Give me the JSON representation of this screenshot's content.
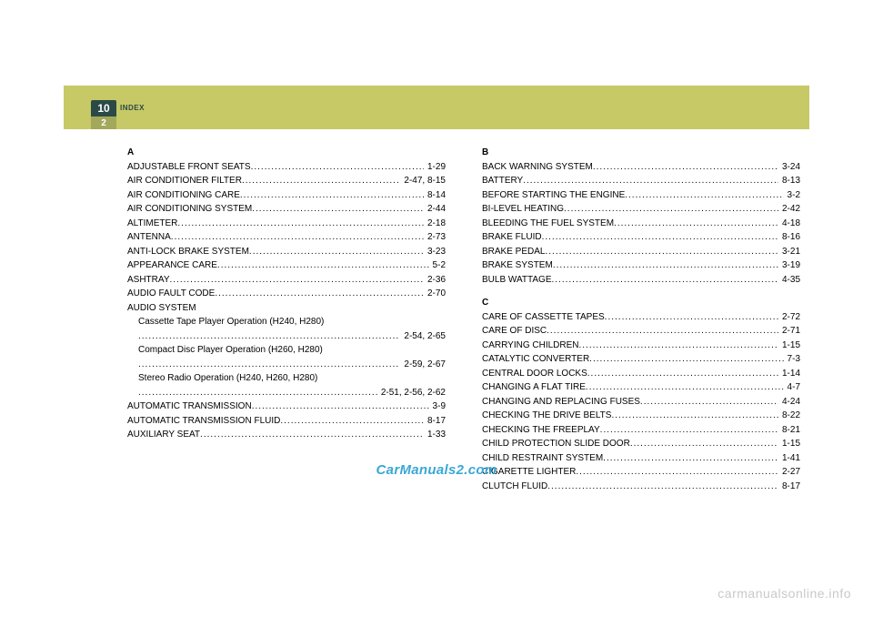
{
  "header": {
    "chapter_number": "10",
    "chapter_label": "INDEX",
    "page_number": "2"
  },
  "left_column": {
    "sections": [
      {
        "letter": "A",
        "entries": [
          {
            "label": "ADJUSTABLE FRONT SEATS",
            "page": "1-29"
          },
          {
            "label": "AIR CONDITIONER FILTER",
            "page": "2-47, 8-15"
          },
          {
            "label": "AIR CONDITIONING CARE",
            "page": "8-14"
          },
          {
            "label": "AIR CONDITIONING SYSTEM",
            "page": "2-44"
          },
          {
            "label": "ALTIMETER",
            "page": "2-18"
          },
          {
            "label": "ANTENNA",
            "page": "2-73"
          },
          {
            "label": "ANTI-LOCK BRAKE SYSTEM",
            "page": "3-23"
          },
          {
            "label": "APPEARANCE CARE",
            "page": "5-2"
          },
          {
            "label": "ASHTRAY",
            "page": "2-36"
          },
          {
            "label": "AUDIO FAULT CODE",
            "page": "2-70"
          },
          {
            "label": "AUDIO SYSTEM",
            "page": ""
          },
          {
            "label": "Cassette Tape Player Operation (H240, H280)",
            "page": "",
            "sub": true
          },
          {
            "label": "",
            "page": "2-54, 2-65",
            "sub": true,
            "cont": true
          },
          {
            "label": "Compact Disc Player Operation (H260, H280)",
            "page": "",
            "sub": true
          },
          {
            "label": "",
            "page": "2-59, 2-67",
            "sub": true,
            "cont": true
          },
          {
            "label": "Stereo Radio Operation (H240, H260, H280)",
            "page": "",
            "sub": true
          },
          {
            "label": "",
            "page": "2-51, 2-56, 2-62",
            "sub": true,
            "cont": true
          },
          {
            "label": "AUTOMATIC TRANSMISSION",
            "page": "3-9"
          },
          {
            "label": "AUTOMATIC TRANSMISSION FLUID",
            "page": "8-17"
          },
          {
            "label": "AUXILIARY SEAT",
            "page": "1-33"
          }
        ]
      }
    ]
  },
  "right_column": {
    "sections": [
      {
        "letter": "B",
        "entries": [
          {
            "label": "BACK WARNING SYSTEM",
            "page": "3-24"
          },
          {
            "label": "BATTERY",
            "page": "8-13"
          },
          {
            "label": "BEFORE STARTING THE ENGINE",
            "page": "3-2"
          },
          {
            "label": "BI-LEVEL HEATING",
            "page": "2-42"
          },
          {
            "label": "BLEEDING THE FUEL SYSTEM",
            "page": "4-18"
          },
          {
            "label": "BRAKE FLUID",
            "page": "8-16"
          },
          {
            "label": "BRAKE PEDAL",
            "page": "3-21"
          },
          {
            "label": "BRAKE SYSTEM",
            "page": "3-19"
          },
          {
            "label": "BULB WATTAGE",
            "page": "4-35"
          }
        ]
      },
      {
        "letter": "C",
        "entries": [
          {
            "label": "CARE OF CASSETTE TAPES",
            "page": "2-72"
          },
          {
            "label": "CARE OF DISC",
            "page": "2-71"
          },
          {
            "label": "CARRYING CHILDREN",
            "page": "1-15"
          },
          {
            "label": "CATALYTIC CONVERTER",
            "page": "7-3"
          },
          {
            "label": "CENTRAL DOOR LOCKS",
            "page": "1-14"
          },
          {
            "label": "CHANGING A FLAT TIRE",
            "page": "4-7"
          },
          {
            "label": "CHANGING AND REPLACING FUSES",
            "page": "4-24"
          },
          {
            "label": "CHECKING THE DRIVE BELTS",
            "page": "8-22"
          },
          {
            "label": "CHECKING THE FREEPLAY",
            "page": "8-21"
          },
          {
            "label": "CHILD PROTECTION SLIDE DOOR",
            "page": "1-15"
          },
          {
            "label": "CHILD RESTRAINT SYSTEM",
            "page": "1-41"
          },
          {
            "label": "CIGARETTE LIGHTER",
            "page": "2-27"
          },
          {
            "label": "CLUTCH FLUID",
            "page": "8-17"
          }
        ]
      }
    ]
  },
  "watermarks": {
    "center": "CarManuals2.com",
    "corner": "carmanualsonline.info"
  }
}
